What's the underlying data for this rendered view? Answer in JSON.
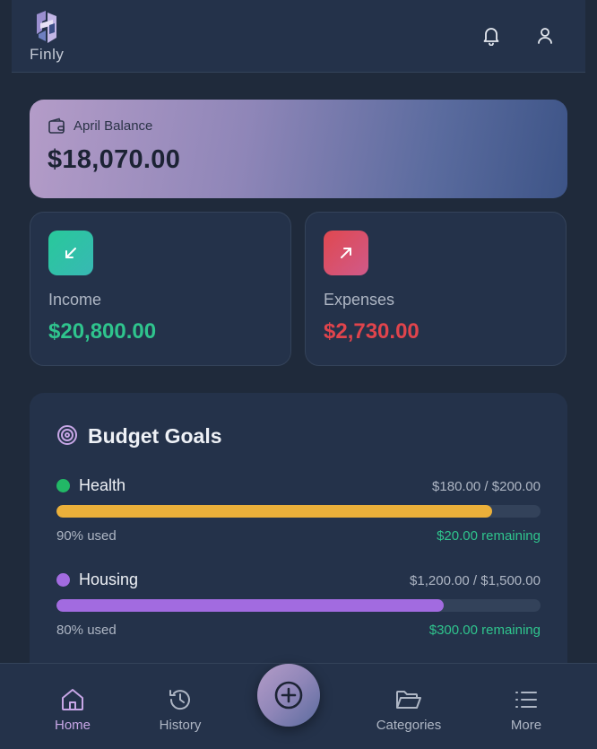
{
  "app": {
    "name": "Finly"
  },
  "header": {
    "icons": [
      "bell-icon",
      "user-icon"
    ]
  },
  "balance": {
    "label": "April Balance",
    "amount": "$18,070.00",
    "icon": "wallet-icon"
  },
  "income": {
    "label": "Income",
    "amount": "$20,800.00",
    "icon": "arrow-down-left-icon",
    "color": "#2fc48d"
  },
  "expenses": {
    "label": "Expenses",
    "amount": "$2,730.00",
    "icon": "arrow-up-right-icon",
    "color": "#e0444c"
  },
  "budget_goals": {
    "title": "Budget Goals",
    "icon": "target-icon",
    "items": [
      {
        "name": "Health",
        "amounts": "$180.00 / $200.00",
        "used": "90% used",
        "remaining": "$20.00 remaining",
        "progress": 0.9,
        "dot_color": "#22b866",
        "bar_color": "#ebb03a"
      },
      {
        "name": "Housing",
        "amounts": "$1,200.00 / $1,500.00",
        "used": "80% used",
        "remaining": "$300.00 remaining",
        "progress": 0.8,
        "dot_color": "#a26be0",
        "bar_color": "#a26be0"
      }
    ]
  },
  "nav": {
    "home": "Home",
    "history": "History",
    "categories": "Categories",
    "more": "More",
    "active": "home",
    "fab_icon": "plus-circle-icon"
  }
}
